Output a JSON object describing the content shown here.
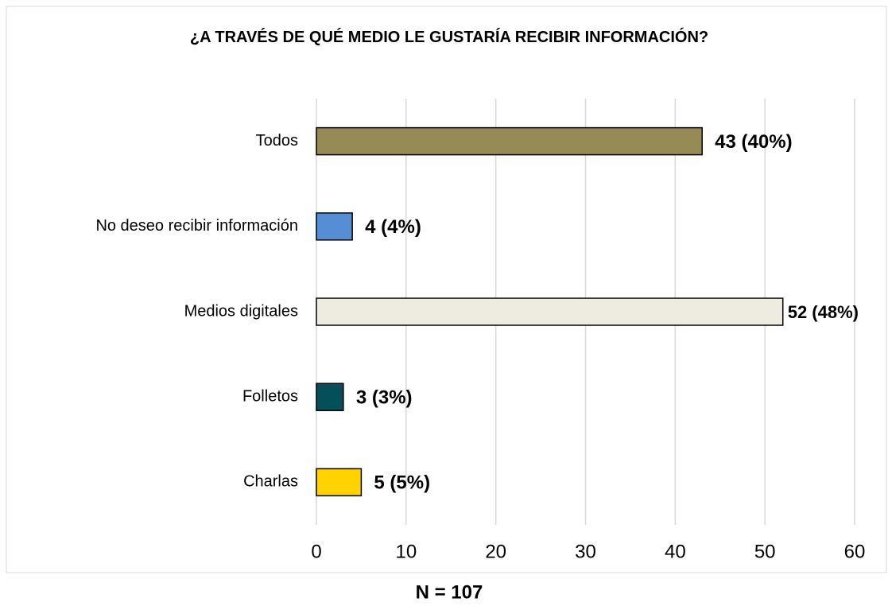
{
  "chart_data": {
    "type": "bar",
    "orientation": "horizontal",
    "title": "¿A TRAVÉS DE QUÉ MEDIO LE GUSTARÍA RECIBIR INFORMACIÓN?",
    "categories": [
      "Todos",
      "No deseo recibir información",
      "Medios digitales",
      "Folletos",
      "Charlas"
    ],
    "values": [
      43,
      4,
      52,
      3,
      5
    ],
    "value_labels": [
      "43 (40%)",
      "4 (4%)",
      "52 (48%)",
      "3 (3%)",
      "5 (5%)"
    ],
    "colors": [
      "#968b55",
      "#558ed5",
      "#eeece1",
      "#03505a",
      "#ffd200"
    ],
    "xlim": [
      0,
      60
    ],
    "xticks": [
      0,
      10,
      20,
      30,
      40,
      50,
      60
    ],
    "grid": true,
    "annotation": "N = 107"
  }
}
